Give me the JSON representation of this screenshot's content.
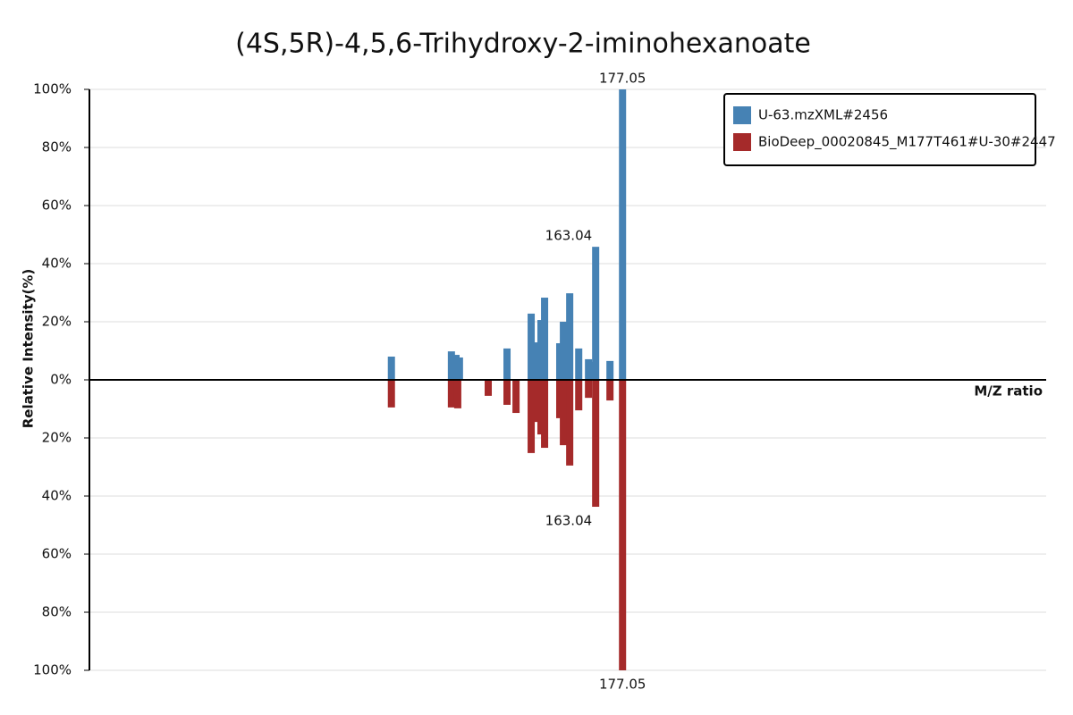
{
  "chart_data": {
    "type": "mirror-bar",
    "title": "(4S,5R)-4,5,6-Trihydroxy-2-iminohexanoate",
    "x_label": "M/Z ratio",
    "y_label": "Relative Intensity(%)",
    "xlim": [
      -101,
      398
    ],
    "ylim": [
      -100,
      100
    ],
    "yticks": [
      {
        "value": 100,
        "label": "100%"
      },
      {
        "value": 80,
        "label": "80%"
      },
      {
        "value": 60,
        "label": "60%"
      },
      {
        "value": 40,
        "label": "40%"
      },
      {
        "value": 20,
        "label": "20%"
      },
      {
        "value": 0,
        "label": "0%"
      },
      {
        "value": -20,
        "label": "20%"
      },
      {
        "value": -40,
        "label": "40%"
      },
      {
        "value": -60,
        "label": "60%"
      },
      {
        "value": -80,
        "label": "80%"
      },
      {
        "value": -100,
        "label": "100%"
      }
    ],
    "grid": true,
    "legend": "top-right",
    "series": [
      {
        "name": "U-63.mzXML#2456",
        "color": "#4682b4",
        "x": [
          56.5,
          87.8,
          90.2,
          92.0,
          116.8,
          129.4,
          131.3,
          134.5,
          136.4,
          144.3,
          146.2,
          149.5,
          154.2,
          159.3,
          161.6,
          163.04,
          170.5,
          177.05
        ],
        "values": [
          8,
          9.8,
          8.6,
          7.7,
          10.8,
          22.8,
          12.9,
          20.6,
          28.3,
          12.6,
          20,
          29.8,
          10.8,
          7.1,
          6.2,
          45.8,
          6.5,
          100
        ]
      },
      {
        "name": "BioDeep_00020845_M177T461#U-30#2447",
        "color": "#a52a2a",
        "x": [
          56.5,
          87.8,
          91.1,
          107.0,
          116.8,
          121.5,
          129.4,
          131.3,
          134.5,
          136.4,
          144.3,
          146.2,
          149.5,
          154.2,
          159.3,
          163.04,
          170.5,
          177.05
        ],
        "values": [
          -9.5,
          -9.5,
          -9.8,
          -5.5,
          -8.6,
          -11.4,
          -25.2,
          -14.5,
          -18.8,
          -23.4,
          -13.2,
          -22.5,
          -29.5,
          -10.5,
          -6.2,
          -43.7,
          -7.1,
          -100
        ]
      }
    ],
    "peak_labels": [
      {
        "series": 0,
        "index": 17
      },
      {
        "series": 0,
        "index": 15
      },
      {
        "series": 1,
        "index": 15
      },
      {
        "series": 1,
        "index": 17
      }
    ]
  }
}
